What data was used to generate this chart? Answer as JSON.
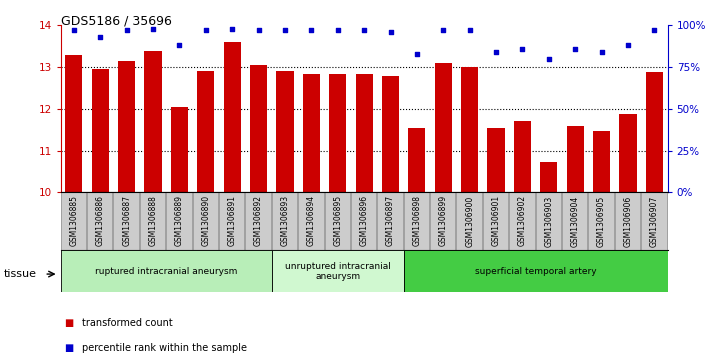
{
  "title": "GDS5186 / 35696",
  "samples": [
    "GSM1306885",
    "GSM1306886",
    "GSM1306887",
    "GSM1306888",
    "GSM1306889",
    "GSM1306890",
    "GSM1306891",
    "GSM1306892",
    "GSM1306893",
    "GSM1306894",
    "GSM1306895",
    "GSM1306896",
    "GSM1306897",
    "GSM1306898",
    "GSM1306899",
    "GSM1306900",
    "GSM1306901",
    "GSM1306902",
    "GSM1306903",
    "GSM1306904",
    "GSM1306905",
    "GSM1306906",
    "GSM1306907"
  ],
  "bar_values": [
    13.3,
    12.95,
    13.15,
    13.38,
    12.05,
    12.9,
    13.6,
    13.05,
    12.9,
    12.83,
    12.83,
    12.83,
    12.78,
    11.55,
    13.1,
    13.0,
    11.55,
    11.72,
    10.73,
    11.6,
    11.48,
    11.87,
    12.88
  ],
  "blue_values": [
    97,
    93,
    97,
    98,
    88,
    97,
    98,
    97,
    97,
    97,
    97,
    97,
    96,
    83,
    97,
    97,
    84,
    86,
    80,
    86,
    84,
    88,
    97
  ],
  "ylim_left": [
    10,
    14
  ],
  "ylim_right": [
    0,
    100
  ],
  "yticks_left": [
    10,
    11,
    12,
    13,
    14
  ],
  "yticks_right": [
    0,
    25,
    50,
    75,
    100
  ],
  "ytick_labels_right": [
    "0%",
    "25%",
    "50%",
    "75%",
    "100%"
  ],
  "bar_color": "#cc0000",
  "blue_color": "#0000cc",
  "grid_color": "#000000",
  "tissue_groups": [
    {
      "label": "ruptured intracranial aneurysm",
      "start": 0,
      "end": 8,
      "color": "#b8eeb8"
    },
    {
      "label": "unruptured intracranial\naneurysm",
      "start": 8,
      "end": 13,
      "color": "#d0f8d0"
    },
    {
      "label": "superficial temporal artery",
      "start": 13,
      "end": 23,
      "color": "#44cc44"
    }
  ],
  "legend_items": [
    {
      "label": "transformed count",
      "color": "#cc0000"
    },
    {
      "label": "percentile rank within the sample",
      "color": "#0000cc"
    }
  ],
  "xlabel_tissue": "tissue",
  "xtick_bg": "#cccccc",
  "plot_bg": "#ffffff"
}
